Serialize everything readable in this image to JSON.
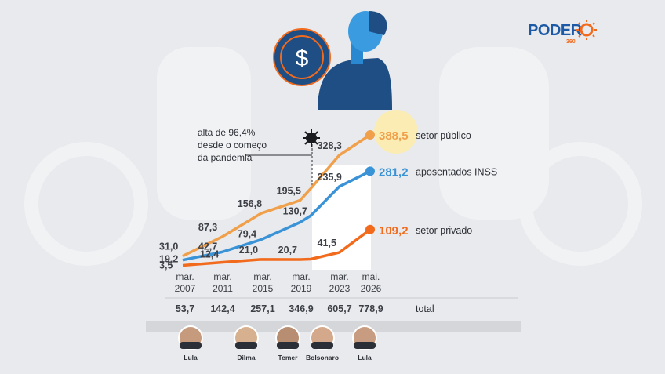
{
  "brand": {
    "name": "PODER",
    "sub": "360",
    "color_blue": "#1d5aa6",
    "color_orange": "#f26b1d"
  },
  "annotation": {
    "line1": "alta de 96,4%",
    "line2": "desde o começo",
    "line3": "da pandemia",
    "icon": "virus-icon"
  },
  "chart_data": {
    "type": "line",
    "x_ticks": [
      {
        "line1": "mar.",
        "line2": "2007"
      },
      {
        "line1": "mar.",
        "line2": "2011"
      },
      {
        "line1": "mar.",
        "line2": "2015"
      },
      {
        "line1": "mar.",
        "line2": "2019"
      },
      {
        "line1": "mar.",
        "line2": "2023"
      },
      {
        "line1": "mai.",
        "line2": "2026"
      }
    ],
    "x": [
      2007.17,
      2011.17,
      2015.17,
      2019.17,
      2020.25,
      2023.17,
      2026.33
    ],
    "series": [
      {
        "name": "setor público",
        "color": "#f0a04b",
        "end_label": "388,5",
        "values": [
          31.0,
          87.3,
          156.8,
          195.5,
          230.0,
          328.3,
          388.5
        ],
        "point_labels": [
          "31,0",
          "87,3",
          "156,8",
          "195,5",
          "",
          "328,3",
          ""
        ]
      },
      {
        "name": "aposentados INSS",
        "color": "#3a93d6",
        "end_label": "281,2",
        "values": [
          19.2,
          42.7,
          79.4,
          130.7,
          150.0,
          235.9,
          281.2
        ],
        "point_labels": [
          "19,2",
          "42,7",
          "79,4",
          "130,7",
          "",
          "235,9",
          ""
        ]
      },
      {
        "name": "setor privado",
        "color": "#f26b1d",
        "end_label": "109,2",
        "values": [
          3.5,
          12.4,
          21.0,
          20.7,
          22.0,
          41.5,
          109.2
        ],
        "point_labels": [
          "3,5",
          "12,4",
          "21,0",
          "20,7",
          "",
          "41,5",
          ""
        ]
      }
    ],
    "totals": {
      "label": "total",
      "values": [
        "53,7",
        "142,4",
        "257,1",
        "346,9",
        "605,7",
        "778,9"
      ]
    },
    "ylim": [
      0,
      400
    ]
  },
  "presidents": [
    "Lula",
    "Dilma",
    "Temer",
    "Bolsonaro",
    "Lula"
  ]
}
